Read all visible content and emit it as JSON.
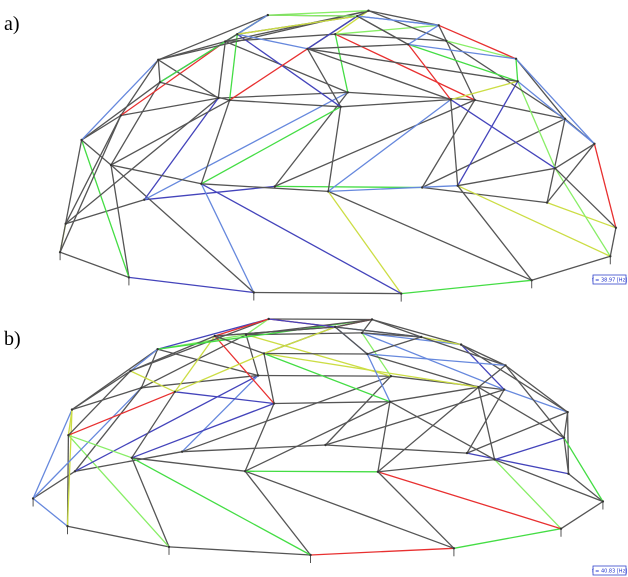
{
  "panels": [
    {
      "label": "a)",
      "frequency": "f = 38.97 [Hz]"
    },
    {
      "label": "b)",
      "frequency": "f = 40.83 [Hz]"
    }
  ]
}
